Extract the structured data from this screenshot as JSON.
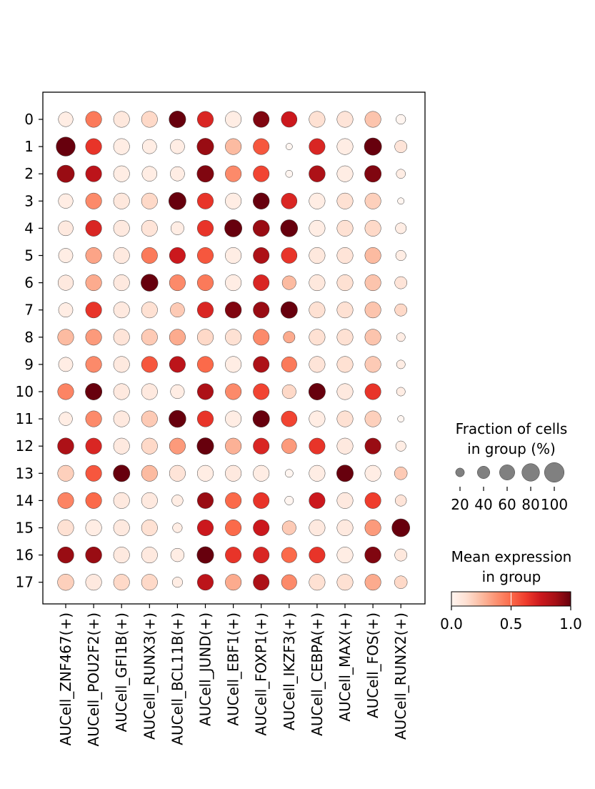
{
  "chart_data": {
    "type": "dotplot",
    "groups": [
      "0",
      "1",
      "2",
      "3",
      "4",
      "5",
      "6",
      "7",
      "8",
      "9",
      "10",
      "11",
      "12",
      "13",
      "14",
      "15",
      "16",
      "17"
    ],
    "features": [
      "AUCell_ZNF467(+)",
      "AUCell_POU2F2(+)",
      "AUCell_GFI1B(+)",
      "AUCell_RUNX3(+)",
      "AUCell_BCL11B(+)",
      "AUCell_JUND(+)",
      "AUCell_EBF1(+)",
      "AUCell_FOXP1(+)",
      "AUCell_IKZF3(+)",
      "AUCell_CEBPA(+)",
      "AUCell_MAX(+)",
      "AUCell_FOS(+)",
      "AUCell_RUNX2(+)"
    ],
    "mean_expression": [
      [
        0.05,
        0.45,
        0.08,
        0.15,
        1.0,
        0.7,
        0.05,
        0.95,
        0.75,
        0.12,
        0.1,
        0.22,
        0.0
      ],
      [
        1.0,
        0.65,
        0.05,
        0.05,
        0.05,
        0.9,
        0.25,
        0.55,
        0.0,
        0.7,
        0.05,
        1.0,
        0.1
      ],
      [
        0.9,
        0.8,
        0.05,
        0.05,
        0.05,
        0.95,
        0.4,
        0.6,
        0.0,
        0.85,
        0.05,
        0.95,
        0.05
      ],
      [
        0.05,
        0.4,
        0.08,
        0.15,
        1.0,
        0.65,
        0.05,
        1.0,
        0.7,
        0.05,
        0.12,
        0.18,
        0.0
      ],
      [
        0.07,
        0.7,
        0.07,
        0.1,
        0.05,
        0.65,
        1.0,
        0.9,
        1.0,
        0.05,
        0.12,
        0.15,
        0.05
      ],
      [
        0.05,
        0.32,
        0.07,
        0.45,
        0.75,
        0.55,
        0.05,
        0.85,
        0.65,
        0.08,
        0.1,
        0.25,
        0.05
      ],
      [
        0.07,
        0.3,
        0.07,
        1.0,
        0.4,
        0.45,
        0.05,
        0.7,
        0.25,
        0.08,
        0.12,
        0.22,
        0.1
      ],
      [
        0.05,
        0.65,
        0.07,
        0.12,
        0.2,
        0.7,
        0.95,
        0.9,
        1.0,
        0.12,
        0.12,
        0.22,
        0.15
      ],
      [
        0.25,
        0.35,
        0.1,
        0.2,
        0.3,
        0.15,
        0.12,
        0.4,
        0.3,
        0.12,
        0.12,
        0.22,
        0.05
      ],
      [
        0.05,
        0.4,
        0.07,
        0.55,
        0.8,
        0.5,
        0.05,
        0.85,
        0.45,
        0.1,
        0.12,
        0.2,
        0.05
      ],
      [
        0.42,
        1.0,
        0.07,
        0.07,
        0.05,
        0.85,
        0.4,
        0.6,
        0.15,
        1.0,
        0.07,
        0.65,
        0.05
      ],
      [
        0.05,
        0.4,
        0.07,
        0.2,
        1.0,
        0.65,
        0.05,
        1.0,
        0.6,
        0.05,
        0.12,
        0.18,
        0.0
      ],
      [
        0.85,
        0.7,
        0.07,
        0.15,
        0.35,
        1.0,
        0.28,
        0.7,
        0.35,
        0.65,
        0.07,
        0.9,
        0.05
      ],
      [
        0.18,
        0.55,
        1.0,
        0.25,
        0.1,
        0.05,
        0.07,
        0.05,
        0.0,
        0.05,
        1.0,
        0.05,
        0.2
      ],
      [
        0.42,
        0.5,
        0.07,
        0.07,
        0.05,
        0.9,
        0.5,
        0.65,
        0.0,
        0.75,
        0.07,
        0.62,
        0.1
      ],
      [
        0.12,
        0.05,
        0.07,
        0.12,
        0.05,
        0.75,
        0.5,
        0.75,
        0.2,
        0.07,
        0.07,
        0.35,
        1.0
      ],
      [
        0.9,
        0.9,
        0.07,
        0.07,
        0.05,
        1.0,
        0.65,
        0.7,
        0.5,
        0.65,
        0.05,
        0.95,
        0.08
      ],
      [
        0.18,
        0.07,
        0.15,
        0.15,
        0.05,
        0.8,
        0.3,
        0.85,
        0.4,
        0.12,
        0.12,
        0.3,
        0.15
      ]
    ],
    "fraction_pct": [
      [
        50,
        60,
        60,
        60,
        65,
        60,
        60,
        60,
        58,
        60,
        60,
        60,
        22
      ],
      [
        85,
        60,
        60,
        48,
        48,
        65,
        60,
        60,
        10,
        60,
        60,
        70,
        35
      ],
      [
        70,
        60,
        60,
        52,
        48,
        65,
        60,
        60,
        12,
        62,
        60,
        65,
        20
      ],
      [
        50,
        60,
        60,
        60,
        70,
        60,
        60,
        62,
        58,
        60,
        60,
        60,
        10
      ],
      [
        52,
        60,
        60,
        60,
        40,
        60,
        70,
        63,
        68,
        60,
        60,
        60,
        28
      ],
      [
        48,
        60,
        60,
        60,
        60,
        60,
        60,
        60,
        58,
        60,
        60,
        60,
        25
      ],
      [
        55,
        60,
        60,
        68,
        60,
        60,
        60,
        60,
        45,
        60,
        60,
        60,
        35
      ],
      [
        48,
        60,
        60,
        60,
        48,
        60,
        62,
        60,
        65,
        60,
        60,
        60,
        35
      ],
      [
        60,
        60,
        60,
        60,
        60,
        60,
        60,
        60,
        32,
        60,
        60,
        60,
        18
      ],
      [
        48,
        60,
        60,
        60,
        60,
        60,
        60,
        60,
        55,
        60,
        60,
        60,
        18
      ],
      [
        60,
        65,
        60,
        60,
        45,
        60,
        60,
        60,
        45,
        65,
        60,
        60,
        18
      ],
      [
        42,
        60,
        60,
        60,
        68,
        60,
        60,
        65,
        58,
        60,
        60,
        60,
        10
      ],
      [
        62,
        60,
        60,
        60,
        60,
        65,
        60,
        60,
        52,
        60,
        60,
        60,
        25
      ],
      [
        60,
        60,
        65,
        60,
        60,
        60,
        60,
        60,
        15,
        60,
        65,
        60,
        38
      ],
      [
        60,
        60,
        60,
        60,
        30,
        60,
        60,
        60,
        18,
        60,
        60,
        60,
        30
      ],
      [
        60,
        60,
        60,
        60,
        22,
        60,
        60,
        60,
        45,
        60,
        60,
        60,
        75
      ],
      [
        62,
        62,
        60,
        60,
        42,
        65,
        60,
        60,
        55,
        60,
        60,
        62,
        35
      ],
      [
        62,
        60,
        60,
        60,
        25,
        60,
        60,
        60,
        55,
        60,
        60,
        60,
        38
      ]
    ],
    "size_legend": {
      "title_line1": "Fraction of cells",
      "title_line2": "in group (%)",
      "values": [
        20,
        40,
        60,
        80,
        100
      ],
      "labels": [
        "20",
        "40",
        "60",
        "80",
        "100"
      ]
    },
    "color_legend": {
      "title_line1": "Mean expression",
      "title_line2": "in group",
      "range": [
        0.0,
        1.0
      ],
      "tick_values": [
        0.0,
        0.5,
        1.0
      ],
      "tick_labels": [
        "0.0",
        "0.5",
        "1.0"
      ]
    },
    "colormap": [
      "#fff5f0",
      "#fee0d2",
      "#fcbba1",
      "#fc9272",
      "#fb6a4a",
      "#ef3b2c",
      "#cb181d",
      "#a50f15",
      "#67000d"
    ],
    "size_legend_color": "#808080"
  }
}
